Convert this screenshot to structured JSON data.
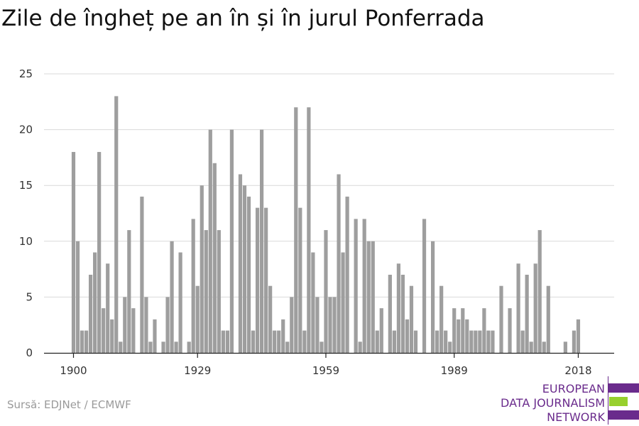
{
  "title": "Zile de îngheț pe an în și în jurul Ponferrada",
  "source": "Sursă: EDJNet / ECMWF",
  "logo": {
    "line1": "EUROPEAN",
    "line2": "DATA JOURNALISM",
    "line3": "NETWORK"
  },
  "colors": {
    "bar": "#9e9e9e",
    "grid": "#d9d9d9",
    "axis": "#222222",
    "brand_purple": "#6a2b8c",
    "brand_green": "#97d02d"
  },
  "chart_data": {
    "type": "bar",
    "title": "Zile de îngheț pe an în și în jurul Ponferrada",
    "xlabel": "",
    "ylabel": "",
    "x_start": 1900,
    "x_end": 2019,
    "xticks": [
      1900,
      1929,
      1959,
      1989,
      2018
    ],
    "yticks": [
      0,
      5,
      10,
      15,
      20,
      25
    ],
    "ylim": [
      0,
      25
    ],
    "grid": true,
    "years": [
      1900,
      1901,
      1902,
      1903,
      1904,
      1905,
      1906,
      1907,
      1908,
      1909,
      1910,
      1911,
      1912,
      1913,
      1914,
      1915,
      1916,
      1917,
      1918,
      1919,
      1920,
      1921,
      1922,
      1923,
      1924,
      1925,
      1926,
      1927,
      1928,
      1929,
      1930,
      1931,
      1932,
      1933,
      1934,
      1935,
      1936,
      1937,
      1938,
      1939,
      1940,
      1941,
      1942,
      1943,
      1944,
      1945,
      1946,
      1947,
      1948,
      1949,
      1950,
      1951,
      1952,
      1953,
      1954,
      1955,
      1956,
      1957,
      1958,
      1959,
      1960,
      1961,
      1962,
      1963,
      1964,
      1965,
      1966,
      1967,
      1968,
      1969,
      1970,
      1971,
      1972,
      1973,
      1974,
      1975,
      1976,
      1977,
      1978,
      1979,
      1980,
      1981,
      1982,
      1983,
      1984,
      1985,
      1986,
      1987,
      1988,
      1989,
      1990,
      1991,
      1992,
      1993,
      1994,
      1995,
      1996,
      1997,
      1998,
      1999,
      2000,
      2001,
      2002,
      2003,
      2004,
      2005,
      2006,
      2007,
      2008,
      2009,
      2010,
      2011,
      2012,
      2013,
      2014,
      2015,
      2016,
      2017,
      2018,
      2019
    ],
    "values": [
      18,
      10,
      2,
      2,
      7,
      9,
      18,
      4,
      8,
      3,
      23,
      1,
      5,
      11,
      4,
      0,
      14,
      5,
      1,
      3,
      0,
      1,
      5,
      10,
      1,
      9,
      0,
      1,
      12,
      6,
      15,
      11,
      20,
      17,
      11,
      2,
      2,
      20,
      0,
      16,
      15,
      14,
      2,
      13,
      20,
      13,
      6,
      2,
      2,
      3,
      1,
      5,
      22,
      13,
      2,
      22,
      9,
      5,
      1,
      11,
      5,
      5,
      16,
      9,
      14,
      0,
      12,
      1,
      12,
      10,
      10,
      2,
      4,
      0,
      7,
      2,
      8,
      7,
      3,
      6,
      2,
      0,
      12,
      0,
      10,
      2,
      6,
      2,
      1,
      4,
      3,
      4,
      3,
      2,
      2,
      2,
      4,
      2,
      2,
      0,
      6,
      0,
      4,
      0,
      8,
      2,
      7,
      1,
      8,
      11,
      1,
      6,
      0,
      0,
      0,
      1,
      0,
      2,
      3,
      0
    ]
  }
}
